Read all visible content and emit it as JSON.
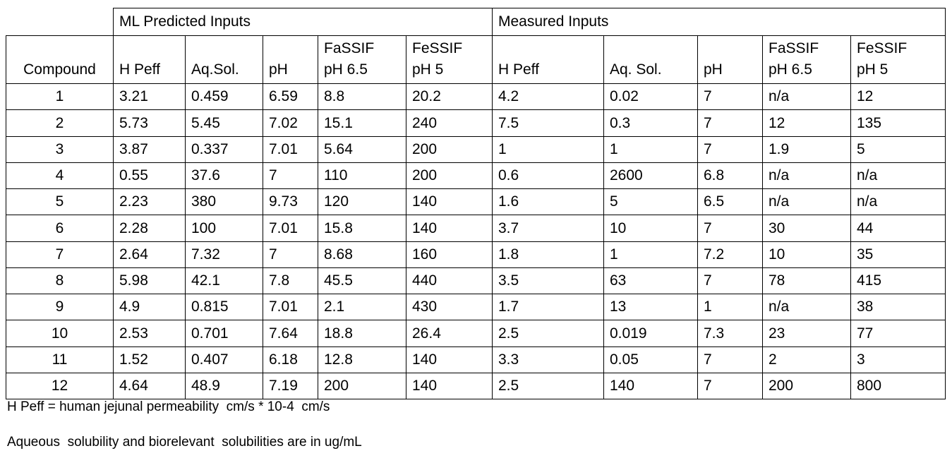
{
  "table": {
    "groups": [
      "ML Predicted Inputs",
      "Measured Inputs"
    ],
    "columns": [
      [
        "Compound"
      ],
      [
        "H Peff"
      ],
      [
        "Aq.Sol."
      ],
      [
        "pH"
      ],
      [
        "FaSSIF",
        "pH 6.5"
      ],
      [
        "FeSSIF",
        "pH 5"
      ],
      [
        "H Peff"
      ],
      [
        "Aq. Sol."
      ],
      [
        "pH"
      ],
      [
        "FaSSIF",
        "pH 6.5"
      ],
      [
        "FeSSIF",
        "pH 5"
      ]
    ],
    "rows": [
      [
        "1",
        "3.21",
        "0.459",
        "6.59",
        "8.8",
        "20.2",
        "4.2",
        "0.02",
        "7",
        "n/a",
        "12"
      ],
      [
        "2",
        "5.73",
        "5.45",
        "7.02",
        "15.1",
        "240",
        "7.5",
        "0.3",
        "7",
        "12",
        "135"
      ],
      [
        "3",
        "3.87",
        "0.337",
        "7.01",
        "5.64",
        "200",
        "1",
        "1",
        "7",
        "1.9",
        "5"
      ],
      [
        "4",
        "0.55",
        "37.6",
        "7",
        "110",
        "200",
        "0.6",
        "2600",
        "6.8",
        "n/a",
        "n/a"
      ],
      [
        "5",
        "2.23",
        "380",
        "9.73",
        "120",
        "140",
        "1.6",
        "5",
        "6.5",
        "n/a",
        "n/a"
      ],
      [
        "6",
        "2.28",
        "100",
        "7.01",
        "15.8",
        "140",
        "3.7",
        "10",
        "7",
        "30",
        "44"
      ],
      [
        "7",
        "2.64",
        "7.32",
        "7",
        "8.68",
        "160",
        "1.8",
        "1",
        "7.2",
        "10",
        "35"
      ],
      [
        "8",
        "5.98",
        "42.1",
        "7.8",
        "45.5",
        "440",
        "3.5",
        "63",
        "7",
        "78",
        "415"
      ],
      [
        "9",
        "4.9",
        "0.815",
        "7.01",
        "2.1",
        "430",
        "1.7",
        "13",
        "1",
        "n/a",
        "38"
      ],
      [
        "10",
        "2.53",
        "0.701",
        "7.64",
        "18.8",
        "26.4",
        "2.5",
        "0.019",
        "7.3",
        "23",
        "77"
      ],
      [
        "11",
        "1.52",
        "0.407",
        "6.18",
        "12.8",
        "140",
        "3.3",
        "0.05",
        "7",
        "2",
        "3"
      ],
      [
        "12",
        "4.64",
        "48.9",
        "7.19",
        "200",
        "140",
        "2.5",
        "140",
        "7",
        "200",
        "800"
      ]
    ]
  },
  "notes": [
    "H Peff = human jejunal permeability  cm/s * 10-4  cm/s",
    "Aqueous  solubility and biorelevant  solubilities are in ug/mL"
  ]
}
